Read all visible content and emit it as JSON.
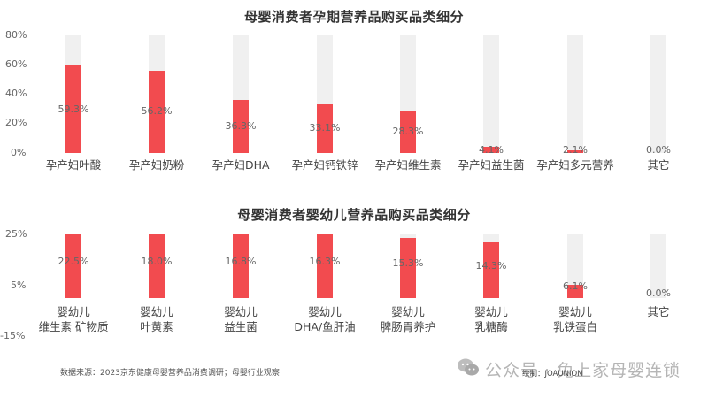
{
  "chart_data": [
    {
      "type": "bar",
      "title": "母婴消费者孕期营养品购买品类细分",
      "categories": [
        "孕产妇叶酸",
        "孕产妇奶粉",
        "孕产妇DHA",
        "孕产妇钙铁锌",
        "孕产妇维生素",
        "孕产妇益生菌",
        "孕产妇多元营养",
        "其它"
      ],
      "values": [
        59.3,
        56.2,
        36.3,
        33.1,
        28.3,
        4.1,
        2.1,
        0.0
      ],
      "value_labels": [
        "59.3%",
        "56.2%",
        "36.3%",
        "33.1%",
        "28.3%",
        "4.1%",
        "2.1%",
        "0.0%"
      ],
      "yticks": [
        "80%",
        "60%",
        "40%",
        "20%",
        "0%"
      ],
      "ylim": [
        0,
        80
      ],
      "xlabel": "",
      "ylabel": "",
      "grid": false,
      "bar_color": "#f24b4f",
      "track_color": "#f0f0f0"
    },
    {
      "type": "bar",
      "title": "母婴消费者婴幼儿营养品购买品类细分",
      "categories": [
        "婴幼儿\n维生素 矿物质",
        "婴幼儿\n叶黄素",
        "婴幼儿\n益生菌",
        "婴幼儿\nDHA/鱼肝油",
        "婴幼儿\n脾肠胃养护",
        "婴幼儿\n乳糖酶",
        "婴幼儿\n乳铁蛋白",
        "其它"
      ],
      "categories_line1": [
        "婴幼儿",
        "婴幼儿",
        "婴幼儿",
        "婴幼儿",
        "婴幼儿",
        "婴幼儿",
        "婴幼儿",
        "其它"
      ],
      "categories_line2": [
        "维生素 矿物质",
        "叶黄素",
        "益生菌",
        "DHA/鱼肝油",
        "脾肠胃养护",
        "乳糖酶",
        "乳铁蛋白",
        ""
      ],
      "values": [
        22.5,
        18.0,
        16.8,
        16.3,
        15.3,
        14.3,
        6.1,
        0.0
      ],
      "value_labels": [
        "22.5%",
        "18.0%",
        "16.8%",
        "16.3%",
        "15.3%",
        "14.3%",
        "6.1%",
        "0.0%"
      ],
      "yticks": [
        "25%",
        "5%",
        "-15%"
      ],
      "ylim": [
        -15,
        25
      ],
      "xlabel": "",
      "ylabel": "",
      "grid": false,
      "bar_color": "#f24b4f",
      "track_color": "#f0f0f0"
    }
  ],
  "footer": {
    "source": "数据来源：2023京东健康母婴营养品消费调研；母婴行业观察",
    "credit": "绘制：JOAUNION",
    "watermark": "公众号 · 兔上家母婴连锁"
  }
}
